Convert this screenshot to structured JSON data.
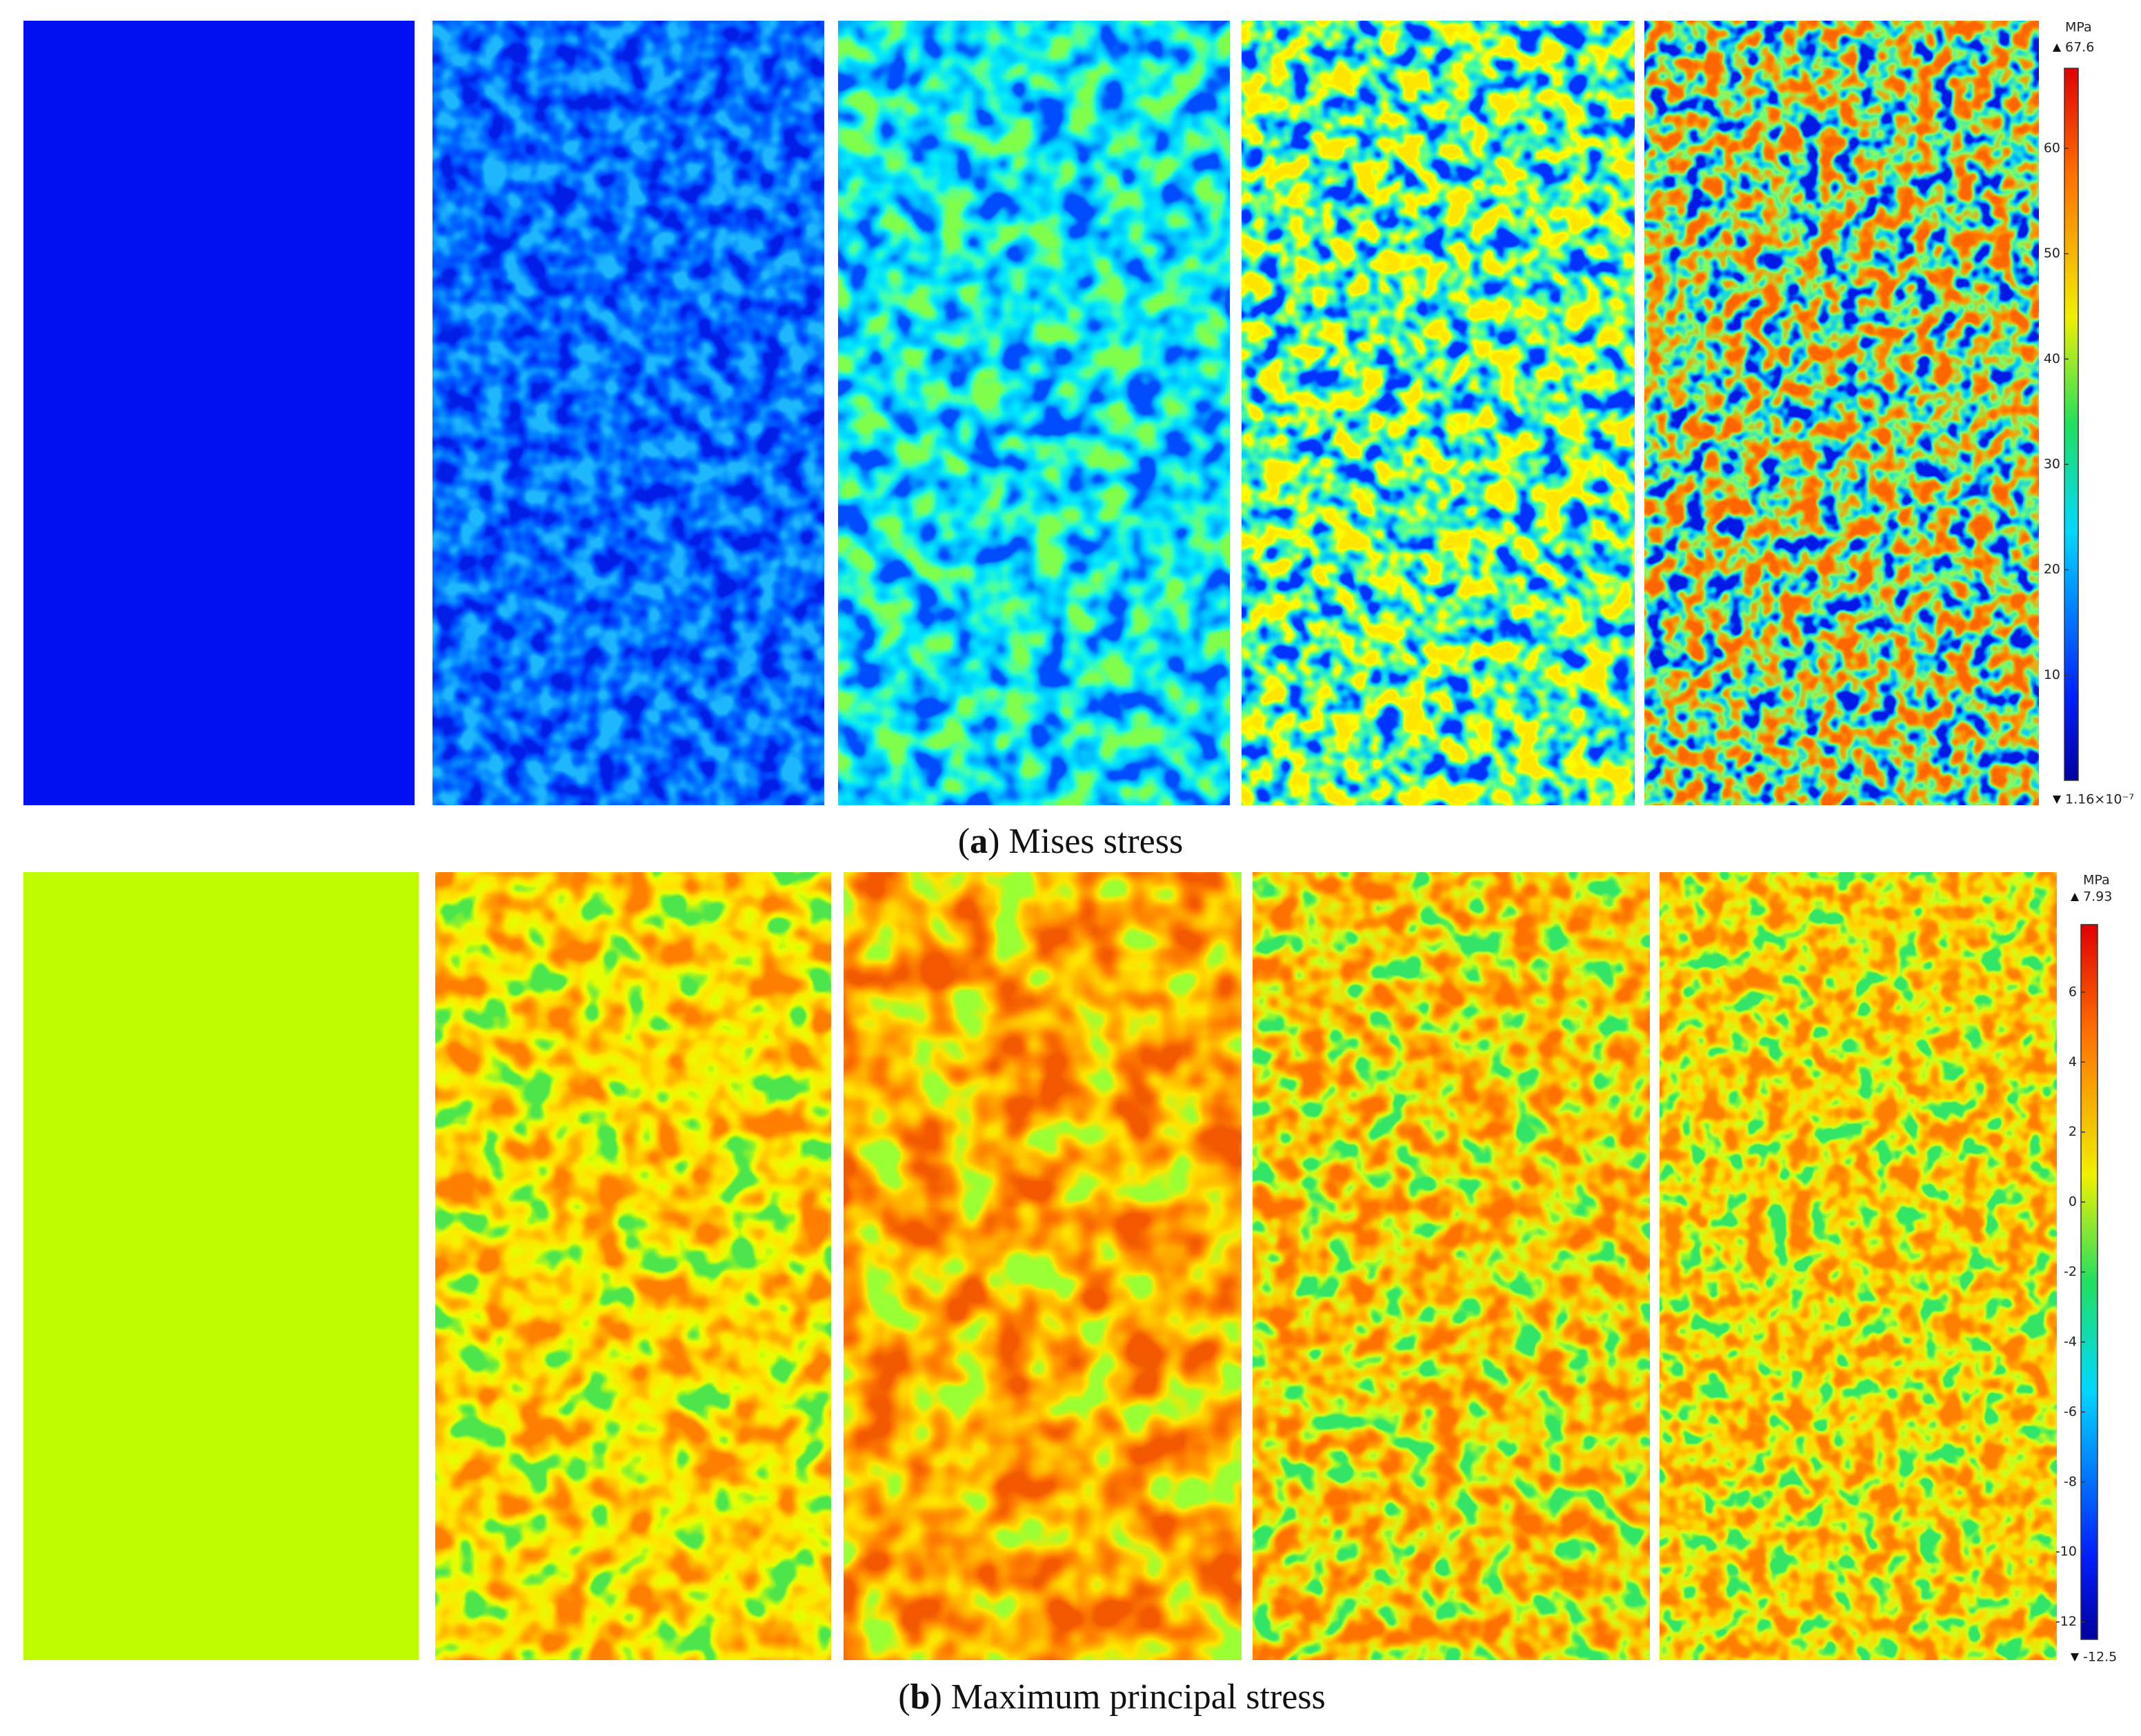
{
  "figure": {
    "panels": [
      {
        "caption": [
          "(",
          "a",
          ") Mises stress"
        ],
        "unit": "MPa",
        "max": 67.6,
        "min": {
          "value": 1.16e-07,
          "label": "1.16×10⁻⁷"
        },
        "ticks": [
          10,
          20,
          30,
          40,
          50,
          60
        ]
      },
      {
        "caption": [
          "(",
          "b",
          ") Maximum principal stress"
        ],
        "unit": "MPa",
        "max": 7.93,
        "min": -12.5,
        "ticks": [
          -12,
          -10,
          -8,
          -6,
          -4,
          -2,
          0,
          2,
          4,
          6
        ]
      }
    ]
  }
}
